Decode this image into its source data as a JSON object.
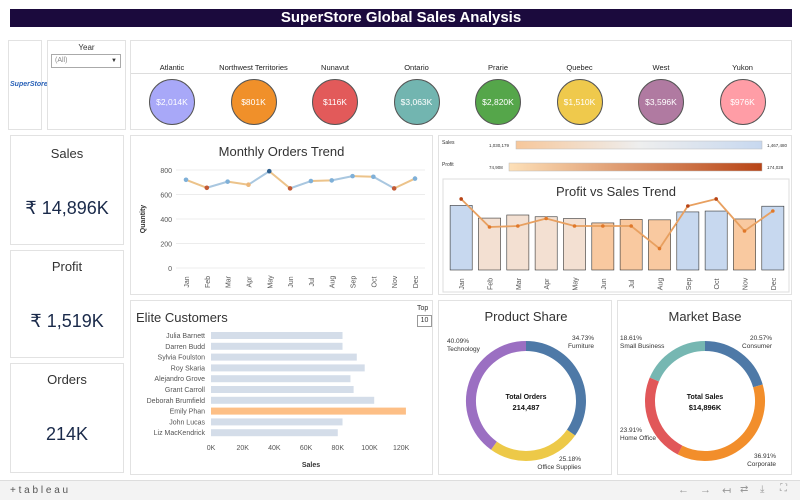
{
  "header": {
    "title": "SuperStore Global Sales Analysis"
  },
  "filter": {
    "label": "Year",
    "value": "(All)",
    "logo_text": "SuperStore"
  },
  "regions": [
    {
      "name": "Atlantic",
      "value": "$2,014K",
      "color": "#a8a8f8"
    },
    {
      "name": "Northwest Territories",
      "value": "$801K",
      "color": "#f0902a"
    },
    {
      "name": "Nunavut",
      "value": "$116K",
      "color": "#e25a5a"
    },
    {
      "name": "Ontario",
      "value": "$3,063K",
      "color": "#72b5b0"
    },
    {
      "name": "Prarie",
      "value": "$2,820K",
      "color": "#55a64a"
    },
    {
      "name": "Quebec",
      "value": "$1,510K",
      "color": "#efc94c"
    },
    {
      "name": "West",
      "value": "$3,596K",
      "color": "#b07aa1"
    },
    {
      "name": "Yukon",
      "value": "$976K",
      "color": "#ff9da6"
    }
  ],
  "kpis": {
    "sales": {
      "label": "Sales",
      "value": "₹ 14,896K"
    },
    "profit": {
      "label": "Profit",
      "value": "₹ 1,519K"
    },
    "orders": {
      "label": "Orders",
      "value": "214K"
    }
  },
  "legend_bars": {
    "sales": {
      "label": "Sales",
      "min": "1,030,179",
      "max": "1,467,480"
    },
    "profit": {
      "label": "Profit",
      "min": "74,908",
      "max": "174,028"
    }
  },
  "elite": {
    "top_label": "Top",
    "top_value": "10"
  },
  "colors": {
    "line_orange": "#e0782a",
    "bar_highlight": "#fdbf86",
    "bar_default": "#d4dde9",
    "donut_blue": "#4e79a7",
    "donut_orange": "#f28e2b",
    "donut_yellow": "#edc948",
    "donut_purple": "#9b6fc2",
    "donut_red": "#e15759",
    "donut_teal": "#76b7b2"
  },
  "chart_data": [
    {
      "type": "line",
      "title": "Monthly Orders Trend",
      "ylabel": "Quantity",
      "xlabel": "",
      "categories": [
        "Jan",
        "Feb",
        "Mar",
        "Apr",
        "May",
        "Jun",
        "Jul",
        "Aug",
        "Sep",
        "Oct",
        "Nov",
        "Dec"
      ],
      "values": [
        720,
        655,
        705,
        680,
        790,
        650,
        710,
        715,
        750,
        745,
        650,
        730
      ],
      "ylim": [
        0,
        800
      ],
      "yticks": [
        "0",
        "200",
        "400",
        "600",
        "800"
      ],
      "grid": true
    },
    {
      "type": "bar",
      "title": "Profit vs Sales Trend",
      "categories": [
        "Jan",
        "Feb",
        "Mar",
        "Apr",
        "May",
        "Jun",
        "Jul",
        "Aug",
        "Sep",
        "Oct",
        "Nov",
        "Dec"
      ],
      "series": [
        {
          "values": [
            1467480,
            1180000,
            1250000,
            1210000,
            1170000,
            1070000,
            1150000,
            1140000,
            1320000,
            1340000,
            1160000,
            1450000
          ]
        },
        {
          "values": [
            174028,
            118000,
            120000,
            135000,
            120000,
            120000,
            120000,
            74908,
            160000,
            174028,
            110000,
            150000
          ]
        }
      ]
    },
    {
      "type": "bar",
      "title": "Elite Customers",
      "xlabel": "Sales",
      "categories": [
        "Julia Barnett",
        "Darren Budd",
        "Sylvia Foulston",
        "Roy Skaria",
        "Alejandro Grove",
        "Grant Carroll",
        "Deborah Brumfield",
        "Emily Phan",
        "John Lucas",
        "Liz MacKendrick"
      ],
      "values": [
        83000,
        83000,
        92000,
        97000,
        88000,
        90000,
        103000,
        123000,
        83000,
        80000
      ],
      "highlight": "Emily Phan",
      "xticks": [
        "0K",
        "20K",
        "40K",
        "60K",
        "80K",
        "100K",
        "120K"
      ],
      "xlim": [
        0,
        130000
      ]
    },
    {
      "type": "pie",
      "title": "Product Share",
      "center_label": "Total Orders",
      "center_value": "214,487",
      "slices": [
        {
          "name": "Furniture",
          "percent": 34.73,
          "pct_label": "34.73%",
          "color": "#4e79a7"
        },
        {
          "name": "Office Supplies",
          "percent": 25.18,
          "pct_label": "25.18%",
          "color": "#edc948"
        },
        {
          "name": "Technology",
          "percent": 40.09,
          "pct_label": "40.09%",
          "color": "#9b6fc2"
        }
      ]
    },
    {
      "type": "pie",
      "title": "Market Base",
      "center_label": "Total Sales",
      "center_value": "$14,896K",
      "slices": [
        {
          "name": "Consumer",
          "percent": 20.57,
          "pct_label": "20.57%",
          "color": "#4e79a7"
        },
        {
          "name": "Corporate",
          "percent": 36.91,
          "pct_label": "36.91%",
          "color": "#f28e2b"
        },
        {
          "name": "Home Office",
          "percent": 23.91,
          "pct_label": "23.91%",
          "color": "#e15759"
        },
        {
          "name": "Small Business",
          "percent": 18.61,
          "pct_label": "18.61%",
          "color": "#76b7b2"
        }
      ]
    }
  ],
  "footer": {
    "brand": "+ t a b l e a u"
  }
}
